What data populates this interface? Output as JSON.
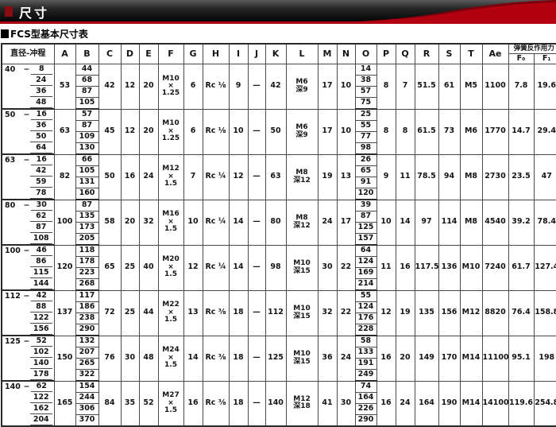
{
  "page": {
    "title": "尺寸",
    "subtitle": "FCS型基本尺寸表"
  },
  "colors": {
    "accent_red": "#b20010",
    "bullet_red": "#8a0b12",
    "banner_dark": "#050505"
  },
  "table": {
    "dash": "−",
    "columns": [
      "直径-冲程",
      "A",
      "B",
      "C",
      "D",
      "E",
      "F",
      "G",
      "H",
      "I",
      "J",
      "K",
      "L",
      "M",
      "N",
      "O",
      "P",
      "Q",
      "R",
      "S",
      "T",
      "Ae"
    ],
    "spring_header": "弹簧反作用力",
    "spring_cols": [
      "F₀",
      "F₁"
    ],
    "blocks": [
      {
        "dia": "40",
        "strokes": [
          "8",
          "24",
          "36",
          "48"
        ],
        "A": "53",
        "B": [
          "44",
          "68",
          "87",
          "105"
        ],
        "C": "42",
        "D": "12",
        "E": "20",
        "F": "M10\n×\n1.25",
        "G": "6",
        "H": "Rc ⅛",
        "I": "9",
        "J": "—",
        "K": "42",
        "L": "M6\n深9",
        "M": "17",
        "N": "10",
        "O": [
          "14",
          "38",
          "57",
          "75"
        ],
        "P": "8",
        "Q": "7",
        "R": "51.5",
        "S": "61",
        "T": "M5",
        "Ae": "1100",
        "F0": "7.8",
        "F1": "19.6"
      },
      {
        "dia": "50",
        "strokes": [
          "16",
          "36",
          "50",
          "64"
        ],
        "A": "63",
        "B": [
          "57",
          "87",
          "109",
          "130"
        ],
        "C": "45",
        "D": "12",
        "E": "20",
        "F": "M10\n×\n1.25",
        "G": "6",
        "H": "Rc ⅛",
        "I": "10",
        "J": "—",
        "K": "50",
        "L": "M6\n深9",
        "M": "17",
        "N": "10",
        "O": [
          "25",
          "55",
          "77",
          "98"
        ],
        "P": "8",
        "Q": "8",
        "R": "61.5",
        "S": "73",
        "T": "M6",
        "Ae": "1770",
        "F0": "14.7",
        "F1": "29.4"
      },
      {
        "dia": "63",
        "strokes": [
          "16",
          "42",
          "59",
          "78"
        ],
        "A": "82",
        "B": [
          "66",
          "105",
          "131",
          "160"
        ],
        "C": "50",
        "D": "16",
        "E": "24",
        "F": "M12\n×\n1.5",
        "G": "7",
        "H": "Rc ¼",
        "I": "12",
        "J": "—",
        "K": "63",
        "L": "M8\n深12",
        "M": "19",
        "N": "13",
        "O": [
          "26",
          "65",
          "91",
          "120"
        ],
        "P": "9",
        "Q": "11",
        "R": "78.5",
        "S": "94",
        "T": "M8",
        "Ae": "2730",
        "F0": "23.5",
        "F1": "47"
      },
      {
        "dia": "80",
        "strokes": [
          "30",
          "62",
          "87",
          "108"
        ],
        "A": "100",
        "B": [
          "87",
          "135",
          "173",
          "205"
        ],
        "C": "58",
        "D": "20",
        "E": "32",
        "F": "M16\n×\n1.5",
        "G": "10",
        "H": "Rc ¼",
        "I": "14",
        "J": "—",
        "K": "80",
        "L": "M8\n深12",
        "M": "24",
        "N": "17",
        "O": [
          "39",
          "87",
          "125",
          "157"
        ],
        "P": "10",
        "Q": "14",
        "R": "97",
        "S": "114",
        "T": "M8",
        "Ae": "4540",
        "F0": "39.2",
        "F1": "78.4"
      },
      {
        "dia": "100",
        "strokes": [
          "46",
          "86",
          "115",
          "144"
        ],
        "A": "120",
        "B": [
          "118",
          "178",
          "223",
          "268"
        ],
        "C": "65",
        "D": "25",
        "E": "40",
        "F": "M20\n×\n1.5",
        "G": "12",
        "H": "Rc ¼",
        "I": "14",
        "J": "—",
        "K": "98",
        "L": "M10\n深15",
        "M": "30",
        "N": "22",
        "O": [
          "64",
          "124",
          "169",
          "214"
        ],
        "P": "11",
        "Q": "16",
        "R": "117.5",
        "S": "136",
        "T": "M10",
        "Ae": "7240",
        "F0": "61.7",
        "F1": "127.4"
      },
      {
        "dia": "112",
        "strokes": [
          "42",
          "88",
          "122",
          "156"
        ],
        "A": "137",
        "B": [
          "117",
          "186",
          "238",
          "290"
        ],
        "C": "72",
        "D": "25",
        "E": "44",
        "F": "M22\n×\n1.5",
        "G": "13",
        "H": "Rc ⅜",
        "I": "18",
        "J": "—",
        "K": "112",
        "L": "M10\n深15",
        "M": "32",
        "N": "22",
        "O": [
          "55",
          "124",
          "176",
          "228"
        ],
        "P": "12",
        "Q": "19",
        "R": "135",
        "S": "156",
        "T": "M12",
        "Ae": "8820",
        "F0": "76.4",
        "F1": "158.8"
      },
      {
        "dia": "125",
        "strokes": [
          "52",
          "102",
          "140",
          "178"
        ],
        "A": "150",
        "B": [
          "132",
          "207",
          "265",
          "322"
        ],
        "C": "76",
        "D": "30",
        "E": "48",
        "F": "M24\n×\n1.5",
        "G": "14",
        "H": "Rc ⅜",
        "I": "18",
        "J": "—",
        "K": "125",
        "L": "M10\n深15",
        "M": "36",
        "N": "24",
        "O": [
          "58",
          "133",
          "191",
          "249"
        ],
        "P": "16",
        "Q": "20",
        "R": "149",
        "S": "170",
        "T": "M14",
        "Ae": "11100",
        "F0": "95.1",
        "F1": "198"
      },
      {
        "dia": "140",
        "strokes": [
          "62",
          "122",
          "162",
          "204"
        ],
        "A": "165",
        "B": [
          "154",
          "244",
          "306",
          "370"
        ],
        "C": "84",
        "D": "35",
        "E": "52",
        "F": "M27\n×\n1.5",
        "G": "16",
        "H": "Rc ⅜",
        "I": "18",
        "J": "—",
        "K": "140",
        "L": "M12\n深18",
        "M": "41",
        "N": "30",
        "O": [
          "74",
          "164",
          "226",
          "290"
        ],
        "P": "16",
        "Q": "24",
        "R": "164",
        "S": "190",
        "T": "M14",
        "Ae": "14100",
        "F0": "119.6",
        "F1": "254.8"
      }
    ]
  }
}
